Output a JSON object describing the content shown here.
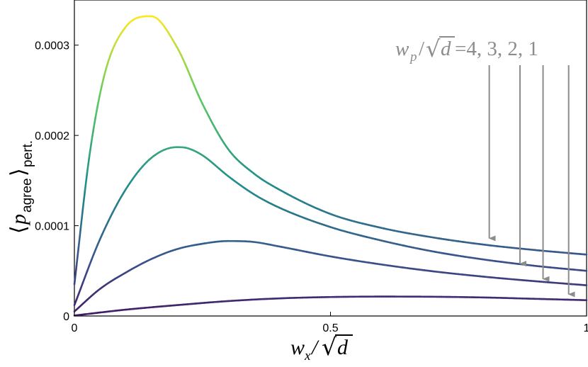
{
  "chart_data": {
    "type": "line",
    "title": "",
    "xlabel": "w_x/√d",
    "ylabel": "⟨p_agree⟩_pert.",
    "xlim": [
      0,
      1
    ],
    "ylim": [
      0,
      0.00035
    ],
    "x_ticks": [
      {
        "value": 0,
        "label": "0"
      },
      {
        "value": 0.5,
        "label": "0.5"
      },
      {
        "value": 1,
        "label": "1"
      }
    ],
    "y_ticks": [
      {
        "value": 0,
        "label": "0"
      },
      {
        "value": 0.0001,
        "label": "0.0001"
      },
      {
        "value": 0.0002,
        "label": "0.0002"
      },
      {
        "value": 0.0003,
        "label": "0.0003"
      }
    ],
    "grid": false,
    "colormap": "viridis (color varies with curve height)",
    "series": [
      {
        "x": [
          0,
          0.03,
          0.06,
          0.1,
          0.15,
          0.2,
          0.25,
          0.3,
          0.35,
          0.4,
          0.5,
          0.6,
          0.7,
          0.8,
          0.9,
          1.0
        ],
        "values": [
          3.5e-05,
          0.00018,
          0.00027,
          0.00032,
          0.000332,
          0.000298,
          0.000235,
          0.000185,
          0.000158,
          0.00014,
          0.000113,
          9.75e-05,
          8.7e-05,
          7.9e-05,
          7.3e-05,
          6.8e-05
        ]
      },
      {
        "x": [
          0,
          0.05,
          0.1,
          0.15,
          0.2,
          0.22,
          0.25,
          0.3,
          0.35,
          0.4,
          0.5,
          0.6,
          0.7,
          0.8,
          0.9,
          1.0
        ],
        "values": [
          1.2e-05,
          8.5e-05,
          0.00014,
          0.000175,
          0.000187,
          0.000186,
          0.000178,
          0.000155,
          0.000135,
          0.00012,
          9.85e-05,
          8.35e-05,
          7.15e-05,
          6.25e-05,
          5.55e-05,
          5e-05
        ]
      },
      {
        "x": [
          0,
          0.05,
          0.1,
          0.15,
          0.2,
          0.25,
          0.3,
          0.35,
          0.4,
          0.5,
          0.6,
          0.7,
          0.8,
          0.9,
          1.0
        ],
        "values": [
          5e-06,
          3e-05,
          4.8e-05,
          6.3e-05,
          7.4e-05,
          8e-05,
          8.3e-05,
          8.2e-05,
          7.7e-05,
          6.6e-05,
          5.7e-05,
          4.95e-05,
          4.35e-05,
          3.85e-05,
          3.4e-05
        ]
      },
      {
        "x": [
          0,
          0.1,
          0.2,
          0.3,
          0.4,
          0.5,
          0.6,
          0.7,
          0.8,
          0.9,
          1.0
        ],
        "values": [
          5e-07,
          7e-06,
          1.2e-05,
          1.65e-05,
          1.95e-05,
          2.1e-05,
          2.15e-05,
          2.13e-05,
          2.05e-05,
          1.9e-05,
          1.75e-05
        ]
      }
    ],
    "annotation": {
      "text": "w_p/√d =4, 3, 2, 1",
      "prefix_var": "w",
      "prefix_sub": "p",
      "prefix_den": "d",
      "values_text": "=4, 3, 2, 1",
      "arrow_x": [
        0.81,
        0.87,
        0.915,
        0.965
      ],
      "arrow_target_y": [
        8.6e-05,
        5.8e-05,
        4.1e-05,
        2.4e-05
      ],
      "color": "#8c8c8c"
    }
  }
}
